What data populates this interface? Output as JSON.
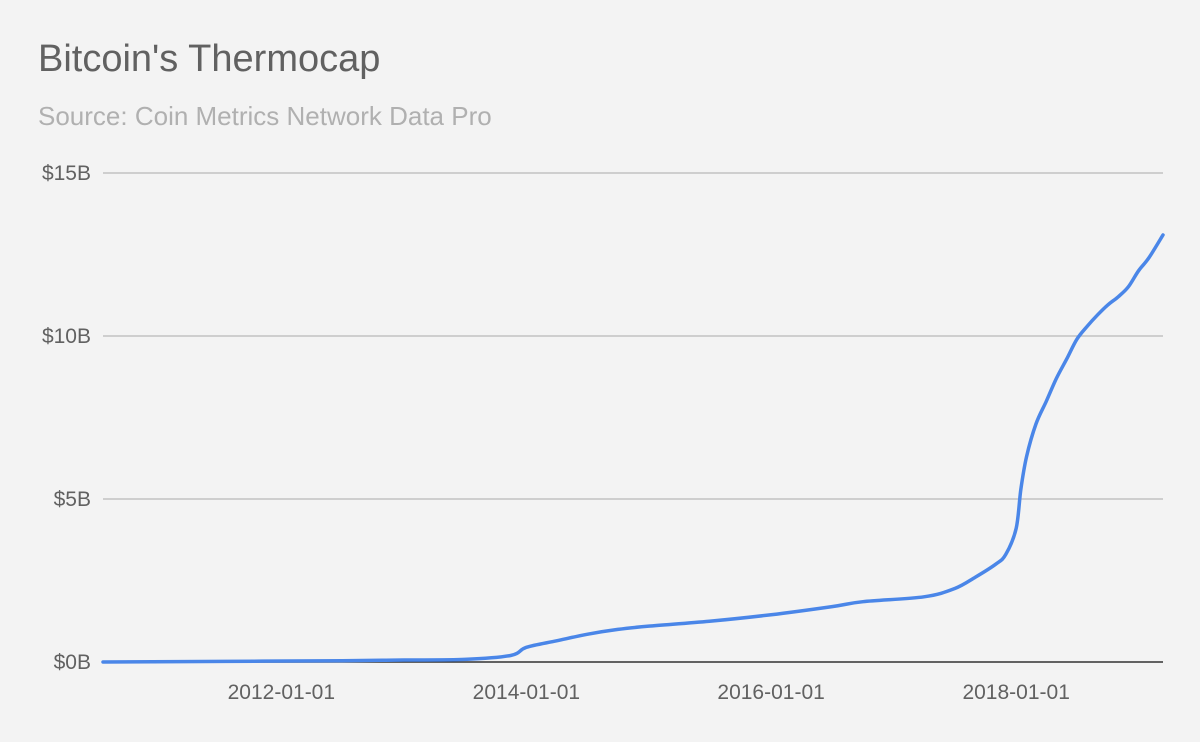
{
  "chart_data": {
    "type": "line",
    "title": "Bitcoin's Thermocap",
    "subtitle": "Source: Coin Metrics Network Data Pro",
    "xlabel": "",
    "ylabel": "",
    "x_range": [
      "2010-07-18",
      "2019-03-15"
    ],
    "ylim": [
      0,
      15
    ],
    "y_unit": "billion USD",
    "grid": true,
    "legend": "none",
    "y_ticks": [
      {
        "value": 0,
        "label": "$0B"
      },
      {
        "value": 5,
        "label": "$5B"
      },
      {
        "value": 10,
        "label": "$10B"
      },
      {
        "value": 15,
        "label": "$15B"
      }
    ],
    "x_ticks": [
      {
        "value": "2012-01-01",
        "label": "2012-01-01"
      },
      {
        "value": "2014-01-01",
        "label": "2014-01-01"
      },
      {
        "value": "2016-01-01",
        "label": "2016-01-01"
      },
      {
        "value": "2018-01-01",
        "label": "2018-01-01"
      }
    ],
    "colors": {
      "line": "#4a86e8",
      "grid": "#b7b7b7",
      "baseline": "#333333"
    },
    "series": [
      {
        "x": [
          "2010-07-18",
          "2011-07-18",
          "2012-07-01",
          "2013-01-01",
          "2013-07-01",
          "2013-11-15",
          "2014-01-01",
          "2014-04-01",
          "2014-07-01",
          "2014-10-01",
          "2015-01-01",
          "2015-07-01",
          "2016-01-01",
          "2016-07-01",
          "2016-10-01",
          "2017-04-01",
          "2017-07-01",
          "2017-09-01",
          "2017-11-01",
          "2017-12-01",
          "2018-01-01",
          "2018-01-15",
          "2018-02-01",
          "2018-03-01",
          "2018-04-01",
          "2018-05-01",
          "2018-06-01",
          "2018-07-01",
          "2018-08-01",
          "2018-09-01",
          "2018-10-01",
          "2018-11-01",
          "2018-12-01",
          "2019-01-01",
          "2019-02-01",
          "2019-03-15"
        ],
        "y": [
          0.0,
          0.02,
          0.04,
          0.06,
          0.08,
          0.2,
          0.45,
          0.65,
          0.85,
          1.0,
          1.1,
          1.25,
          1.45,
          1.7,
          1.85,
          2.0,
          2.25,
          2.6,
          3.0,
          3.3,
          4.1,
          5.3,
          6.3,
          7.3,
          8.0,
          8.7,
          9.3,
          9.9,
          10.3,
          10.65,
          10.95,
          11.2,
          11.5,
          12.0,
          12.4,
          13.1
        ]
      }
    ]
  }
}
